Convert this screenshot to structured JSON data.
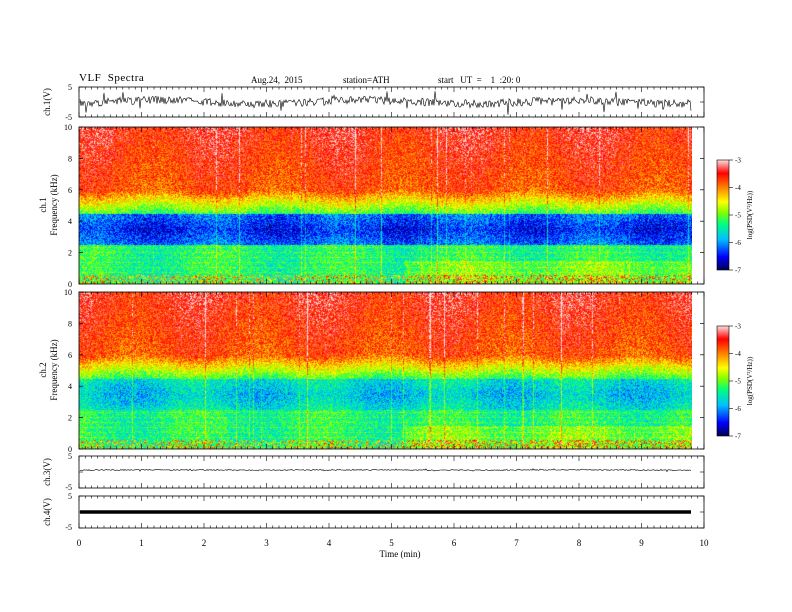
{
  "header": {
    "title": "VLF  Spectra",
    "date": "Aug.24,  2015",
    "station": "station=ATH",
    "start": "start   UT  =    1  :20: 0"
  },
  "chart_data": [
    {
      "type": "line",
      "panel": "ch1-waveform",
      "ylabel": "ch.1(V)",
      "ylim": [
        -5,
        5
      ],
      "yticks": [
        "5",
        "-5"
      ],
      "xlim": [
        0,
        10
      ]
    },
    {
      "type": "heatmap",
      "panel": "ch1-spectrogram",
      "ylabel_lines": [
        "ch.1",
        "Frequency  (kHz)"
      ],
      "ylim": [
        0,
        10
      ],
      "yticks": [
        "0",
        "2",
        "4",
        "6",
        "8",
        "10"
      ],
      "xlim": [
        0,
        10
      ],
      "data_end_min": 9.8,
      "colorbar": {
        "label": "log(PSD(V²/Hz))",
        "range": [
          -7,
          -3
        ],
        "ticks": [
          "-3",
          "-4",
          "-5",
          "-6",
          "-7"
        ]
      }
    },
    {
      "type": "heatmap",
      "panel": "ch2-spectrogram",
      "ylabel_lines": [
        "ch.2",
        "Frequency  (kHz)"
      ],
      "ylim": [
        0,
        10
      ],
      "yticks": [
        "0",
        "2",
        "4",
        "6",
        "8",
        "10"
      ],
      "xlim": [
        0,
        10
      ],
      "data_end_min": 9.8,
      "colorbar": {
        "label": "log(PSD(V²/Hz))",
        "range": [
          -7,
          -3
        ],
        "ticks": [
          "-3",
          "-4",
          "-5",
          "-6",
          "-7"
        ]
      }
    },
    {
      "type": "line",
      "panel": "ch3-waveform",
      "ylabel": "ch.3(V)",
      "ylim": [
        -5,
        5
      ],
      "yticks": [
        "5",
        "-5"
      ],
      "xlim": [
        0,
        10
      ]
    },
    {
      "type": "line",
      "panel": "ch4-waveform",
      "ylabel": "ch.4(V)",
      "ylim": [
        -5,
        5
      ],
      "yticks": [
        "5",
        "-5"
      ],
      "xlim": [
        0,
        10
      ]
    }
  ],
  "x_axis": {
    "label": "Time  (min)",
    "ticks": [
      "0",
      "1",
      "2",
      "3",
      "4",
      "5",
      "6",
      "7",
      "8",
      "9",
      "10"
    ]
  },
  "colors": {
    "colormap": [
      "#000050",
      "#0000ff",
      "#00c0ff",
      "#00ff80",
      "#80ff00",
      "#ffff00",
      "#ff8000",
      "#ff0000",
      "#ffffff"
    ]
  }
}
